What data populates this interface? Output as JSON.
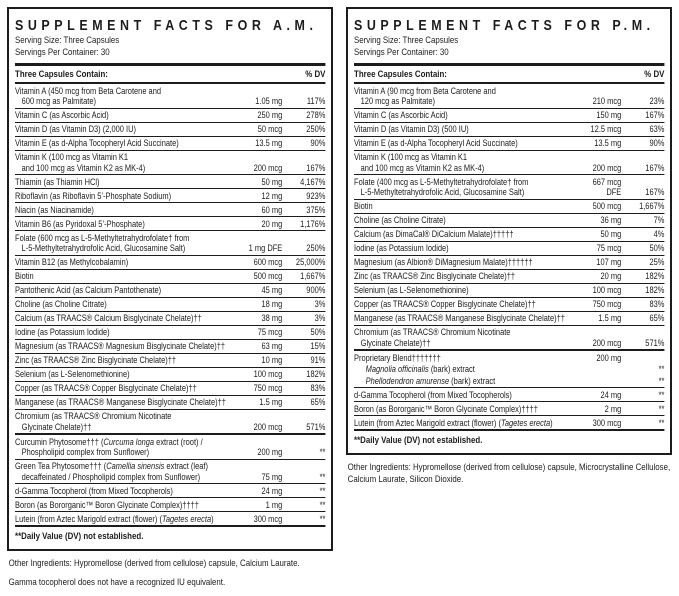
{
  "colors": {
    "text": "#1c1c1c",
    "border": "#1c1c1c",
    "background": "#ffffff"
  },
  "panels": [
    {
      "id": "am",
      "title": "SUPPLEMENT FACTS FOR A.M.",
      "serving_size": "Serving Size: Three Capsules",
      "servings_per_container": "Servings Per Container: 30",
      "contains_label": "Three Capsules Contain:",
      "dv_header": "% DV",
      "rows": [
        {
          "name": [
            {
              "t": "Vitamin A (450 mcg from Beta Carotene and"
            },
            {
              "br": true
            },
            {
              "t": "600 mcg as Palmitate)"
            }
          ],
          "amount": "1.05 mg",
          "dv": "117%"
        },
        {
          "name": [
            {
              "t": "Vitamin C (as Ascorbic Acid)"
            }
          ],
          "amount": "250 mg",
          "dv": "278%"
        },
        {
          "name": [
            {
              "t": "Vitamin D (as Vitamin D3) (2,000 IU)"
            }
          ],
          "amount": "50 mcg",
          "dv": "250%"
        },
        {
          "name": [
            {
              "t": "Vitamin E (as d-Alpha Tocopheryl Acid Succinate)"
            }
          ],
          "amount": "13.5 mg",
          "dv": "90%"
        },
        {
          "name": [
            {
              "t": "Vitamin K (100 mcg as Vitamin K1"
            },
            {
              "br": true
            },
            {
              "t": "and 100 mcg as Vitamin K2 as MK-4)"
            }
          ],
          "amount": "200 mcg",
          "dv": "167%"
        },
        {
          "name": [
            {
              "t": "Thiamin (as Thiamin HCl)"
            }
          ],
          "amount": "50 mg",
          "dv": "4,167%"
        },
        {
          "name": [
            {
              "t": "Riboflavin (as Riboflavin 5’-Phosphate Sodium)"
            }
          ],
          "amount": "12 mg",
          "dv": "923%"
        },
        {
          "name": [
            {
              "t": "Niacin (as Niacinamide)"
            }
          ],
          "amount": "60 mg",
          "dv": "375%"
        },
        {
          "name": [
            {
              "t": "Vitamin B6 (as Pyridoxal 5’-Phosphate)"
            }
          ],
          "amount": "20 mg",
          "dv": "1,176%"
        },
        {
          "name": [
            {
              "t": "Folate (600 mcg as L-5-Methyltetrahydrofolate† from"
            },
            {
              "br": true
            },
            {
              "t": "L-5-Methyltetrahydrofolic Acid, Glucosamine Salt)"
            }
          ],
          "amount": "1 mg DFE",
          "dv": "250%"
        },
        {
          "name": [
            {
              "t": "Vitamin B12 (as Methylcobalamin)"
            }
          ],
          "amount": "600 mcg",
          "dv": "25,000%"
        },
        {
          "name": [
            {
              "t": "Biotin"
            }
          ],
          "amount": "500 mcg",
          "dv": "1,667%"
        },
        {
          "name": [
            {
              "t": "Pantothenic Acid (as Calcium Pantothenate)"
            }
          ],
          "amount": "45 mg",
          "dv": "900%"
        },
        {
          "name": [
            {
              "t": "Choline (as Choline Citrate)"
            }
          ],
          "amount": "18 mg",
          "dv": "3%"
        },
        {
          "name": [
            {
              "t": "Calcium (as TRAACS® Calcium Bisglycinate Chelate)††"
            }
          ],
          "amount": "38 mg",
          "dv": "3%"
        },
        {
          "name": [
            {
              "t": "Iodine (as Potassium Iodide)"
            }
          ],
          "amount": "75 mcg",
          "dv": "50%"
        },
        {
          "name": [
            {
              "t": "Magnesium (as TRAACS® Magnesium Bisglycinate Chelate)††"
            }
          ],
          "amount": "63 mg",
          "dv": "15%"
        },
        {
          "name": [
            {
              "t": "Zinc (as TRAACS® Zinc Bisglycinate Chelate)††"
            }
          ],
          "amount": "10 mg",
          "dv": "91%"
        },
        {
          "name": [
            {
              "t": "Selenium (as L-Selenomethionine)"
            }
          ],
          "amount": "100 mcg",
          "dv": "182%"
        },
        {
          "name": [
            {
              "t": "Copper (as TRAACS® Copper Bisglycinate Chelate)††"
            }
          ],
          "amount": "750 mcg",
          "dv": "83%"
        },
        {
          "name": [
            {
              "t": "Manganese (as TRAACS® Manganese Bisglycinate Chelate)††"
            }
          ],
          "amount": "1.5 mg",
          "dv": "65%"
        },
        {
          "name": [
            {
              "t": "Chromium (as TRAACS® Chromium Nicotinate"
            },
            {
              "br": true
            },
            {
              "t": "Glycinate Chelate)††"
            }
          ],
          "amount": "200 mcg",
          "dv": "571%"
        },
        {
          "thick": true,
          "name": [
            {
              "t": "Curcumin Phytosome††† ("
            },
            {
              "t": "Curcuma longa",
              "i": true
            },
            {
              "t": " extract (root) /"
            },
            {
              "br": true
            },
            {
              "t": "Phospholipid complex from Sunflower)"
            }
          ],
          "amount": "200 mg",
          "dv": "**"
        },
        {
          "name": [
            {
              "t": "Green Tea Phytosome††† ("
            },
            {
              "t": "Camellia sinensis",
              "i": true
            },
            {
              "t": " extract (leaf)"
            },
            {
              "br": true
            },
            {
              "t": "decaffeinated / Phospholipid complex from Sunflower)"
            }
          ],
          "amount": "75 mg",
          "dv": "**"
        },
        {
          "name": [
            {
              "t": "d-Gamma Tocopherol (from Mixed Tocopherols)"
            }
          ],
          "amount": "24 mg",
          "dv": "**"
        },
        {
          "name": [
            {
              "t": "Boron (as Bororganic™ Boron Glycinate Complex)††††"
            }
          ],
          "amount": "1 mg",
          "dv": "**"
        },
        {
          "name": [
            {
              "t": "Lutein (from Aztec Marigold extract (flower) ("
            },
            {
              "t": "Tagetes erecta",
              "i": true
            },
            {
              "t": ")"
            }
          ],
          "amount": "300 mcg",
          "dv": "**"
        }
      ],
      "dv_note": "**Daily Value (DV) not established.",
      "footnotes": [
        "Other Ingredients: Hypromellose (derived from cellulose) capsule, Calcium Laurate.",
        "Gamma tocopherol does not have a recognized IU equivalent."
      ]
    },
    {
      "id": "pm",
      "title": "SUPPLEMENT FACTS FOR P.M.",
      "serving_size": "Serving Size: Three Capsules",
      "servings_per_container": "Servings Per Container: 30",
      "contains_label": "Three Capsules Contain:",
      "dv_header": "% DV",
      "rows": [
        {
          "name": [
            {
              "t": "Vitamin A (90 mcg from Beta Carotene and"
            },
            {
              "br": true
            },
            {
              "t": "120 mcg as Palmitate)"
            }
          ],
          "amount": "210 mcg",
          "dv": "23%"
        },
        {
          "name": [
            {
              "t": "Vitamin C (as Ascorbic Acid)"
            }
          ],
          "amount": "150 mg",
          "dv": "167%"
        },
        {
          "name": [
            {
              "t": "Vitamin D (as Vitamin D3) (500 IU)"
            }
          ],
          "amount": "12.5 mcg",
          "dv": "63%"
        },
        {
          "name": [
            {
              "t": "Vitamin E (as d-Alpha Tocopheryl Acid Succinate)"
            }
          ],
          "amount": "13.5 mg",
          "dv": "90%"
        },
        {
          "name": [
            {
              "t": "Vitamin K (100 mcg as Vitamin K1"
            },
            {
              "br": true
            },
            {
              "t": "and 100 mcg as Vitamin K2 as MK-4)"
            }
          ],
          "amount": "200 mcg",
          "dv": "167%"
        },
        {
          "name": [
            {
              "t": "Folate (400 mcg as L-5-Methyltetrahydrofolate† from"
            },
            {
              "br": true
            },
            {
              "t": "L-5-Methyltetrahydrofolic Acid, Glucosamine Salt)"
            }
          ],
          "amount": "667 mcg DFE",
          "dv": "167%"
        },
        {
          "name": [
            {
              "t": "Biotin"
            }
          ],
          "amount": "500 mcg",
          "dv": "1,667%"
        },
        {
          "name": [
            {
              "t": "Choline (as Choline Citrate)"
            }
          ],
          "amount": "36 mg",
          "dv": "7%"
        },
        {
          "name": [
            {
              "t": "Calcium (as DimaCal® DiCalcium Malate)†††††"
            }
          ],
          "amount": "50 mg",
          "dv": "4%"
        },
        {
          "name": [
            {
              "t": "Iodine (as Potassium Iodide)"
            }
          ],
          "amount": "75 mcg",
          "dv": "50%"
        },
        {
          "name": [
            {
              "t": "Magnesium (as Albion® DiMagnesium Malate)††††††"
            }
          ],
          "amount": "107 mg",
          "dv": "25%"
        },
        {
          "name": [
            {
              "t": "Zinc (as TRAACS® Zinc Bisglycinate Chelate)††"
            }
          ],
          "amount": "20 mg",
          "dv": "182%"
        },
        {
          "name": [
            {
              "t": "Selenium (as L-Selenomethionine)"
            }
          ],
          "amount": "100 mcg",
          "dv": "182%"
        },
        {
          "name": [
            {
              "t": "Copper (as TRAACS® Copper Bisglycinate Chelate)††"
            }
          ],
          "amount": "750 mcg",
          "dv": "83%"
        },
        {
          "name": [
            {
              "t": "Manganese (as TRAACS® Manganese Bisglycinate Chelate)††"
            }
          ],
          "amount": "1.5 mg",
          "dv": "65%"
        },
        {
          "name": [
            {
              "t": "Chromium (as TRAACS® Chromium Nicotinate"
            },
            {
              "br": true
            },
            {
              "t": "Glycinate Chelate)††"
            }
          ],
          "amount": "200 mcg",
          "dv": "571%"
        },
        {
          "thick": true,
          "name": [
            {
              "t": "Proprietary Blend†††††††"
            }
          ],
          "amount": "200 mg",
          "dv": ""
        },
        {
          "sub": true,
          "name": [
            {
              "t": "Magnolia officinalis",
              "i": true
            },
            {
              "t": " (bark) extract"
            }
          ],
          "amount": "",
          "dv": "**"
        },
        {
          "sub": true,
          "name": [
            {
              "t": "Phellodendron amurense",
              "i": true
            },
            {
              "t": " (bark) extract"
            }
          ],
          "amount": "",
          "dv": "**"
        },
        {
          "name": [
            {
              "t": "d-Gamma Tocopherol (from Mixed Tocopherols)"
            }
          ],
          "amount": "24 mg",
          "dv": "**"
        },
        {
          "name": [
            {
              "t": "Boron (as Bororganic™ Boron Glycinate Complex)††††"
            }
          ],
          "amount": "2 mg",
          "dv": "**"
        },
        {
          "name": [
            {
              "t": "Lutein (from Aztec Marigold extract (flower) ("
            },
            {
              "t": "Tagetes erecta",
              "i": true
            },
            {
              "t": ")"
            }
          ],
          "amount": "300 mcg",
          "dv": "**"
        }
      ],
      "dv_note": "**Daily Value (DV) not established.",
      "footnotes": [
        "Other Ingredients: Hypromellose (derived from cellulose) capsule, Microcrystalline Cellulose, Calcium Laurate, Silicon Dioxide."
      ]
    }
  ]
}
